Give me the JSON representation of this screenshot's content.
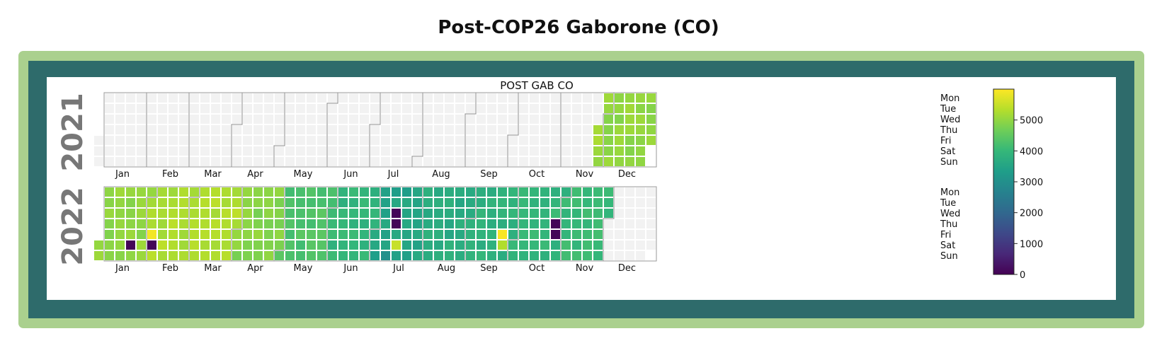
{
  "page_title": "Post-COP26 Gaborone (CO)",
  "chart_data": {
    "type": "heatmap",
    "title": "POST GAB CO",
    "years": [
      2021,
      2022
    ],
    "month_labels": [
      "Jan",
      "Feb",
      "Mar",
      "Apr",
      "May",
      "Jun",
      "Jul",
      "Aug",
      "Sep",
      "Oct",
      "Nov",
      "Dec"
    ],
    "weekday_labels": [
      "Mon",
      "Tue",
      "Wed",
      "Thu",
      "Fri",
      "Sat",
      "Sun"
    ],
    "colorbar": {
      "min": 0,
      "max": 6000,
      "ticks": [
        0,
        1000,
        2000,
        3000,
        4000,
        5000
      ]
    },
    "colormap": [
      "#440154",
      "#482878",
      "#3e4989",
      "#31688e",
      "#26828e",
      "#1f9e89",
      "#35b779",
      "#6ece58",
      "#b5de2b",
      "#fde725"
    ],
    "empty_color": "#f2f2f2",
    "missing_days": [
      "2022-01-22",
      "2022-02-05",
      "2022-07-13",
      "2022-07-14",
      "2022-10-27",
      "2022-10-28"
    ],
    "data_range": {
      "start": "2021-11-25",
      "end": "2022-11-30"
    },
    "monthly_levels": {
      "2021-11": 5100,
      "2021-12": 5000,
      "2022-01": 5000,
      "2022-02": 5250,
      "2022-03": 5300,
      "2022-04": 4900,
      "2022-05": 4300,
      "2022-06": 3950,
      "2022-07": 3500,
      "2022-08": 3700,
      "2022-09": 3850,
      "2022-10": 3950,
      "2022-11": 4050
    },
    "highlight_days": {
      "2022-02-04": 5900,
      "2022-09-23": 5950,
      "2022-09-24": 5300,
      "2022-07-16": 5500,
      "2022-07-10": 3000
    }
  }
}
